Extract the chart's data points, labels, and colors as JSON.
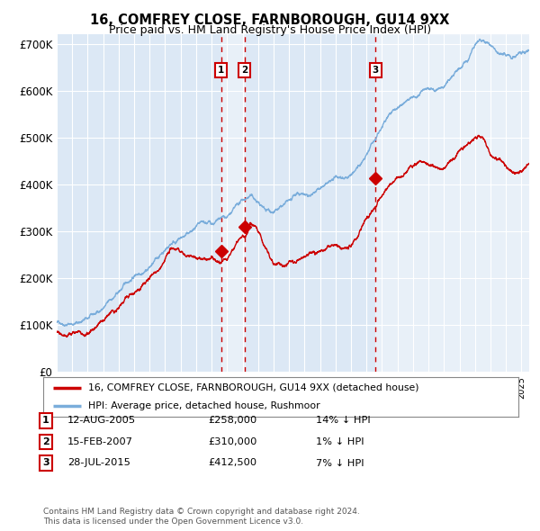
{
  "title": "16, COMFREY CLOSE, FARNBOROUGH, GU14 9XX",
  "subtitle": "Price paid vs. HM Land Registry's House Price Index (HPI)",
  "background_color": "#ffffff",
  "plot_bg_color": "#dce8f5",
  "grid_color": "#ffffff",
  "title_fontsize": 10.5,
  "subtitle_fontsize": 9,
  "sale1": {
    "date_num": 2005.614,
    "price": 258000,
    "label": "1"
  },
  "sale2": {
    "date_num": 2007.12,
    "price": 310000,
    "label": "2"
  },
  "sale3": {
    "date_num": 2015.573,
    "price": 412500,
    "label": "3"
  },
  "shade1_start": 2005.614,
  "shade1_end": 2007.12,
  "shade2_start": 2015.573,
  "shade2_end": 2025.5,
  "xmin": 1995.0,
  "xmax": 2025.5,
  "ymin": 0,
  "ymax": 720000,
  "legend_line1": "16, COMFREY CLOSE, FARNBOROUGH, GU14 9XX (detached house)",
  "legend_line2": "HPI: Average price, detached house, Rushmoor",
  "table_rows": [
    {
      "num": "1",
      "date": "12-AUG-2005",
      "price": "£258,000",
      "change": "14% ↓ HPI"
    },
    {
      "num": "2",
      "date": "15-FEB-2007",
      "price": "£310,000",
      "change": "1% ↓ HPI"
    },
    {
      "num": "3",
      "date": "28-JUL-2015",
      "price": "£412,500",
      "change": "7% ↓ HPI"
    }
  ],
  "footnote1": "Contains HM Land Registry data © Crown copyright and database right 2024.",
  "footnote2": "This data is licensed under the Open Government Licence v3.0.",
  "red_color": "#cc0000",
  "blue_color": "#7aaddb"
}
